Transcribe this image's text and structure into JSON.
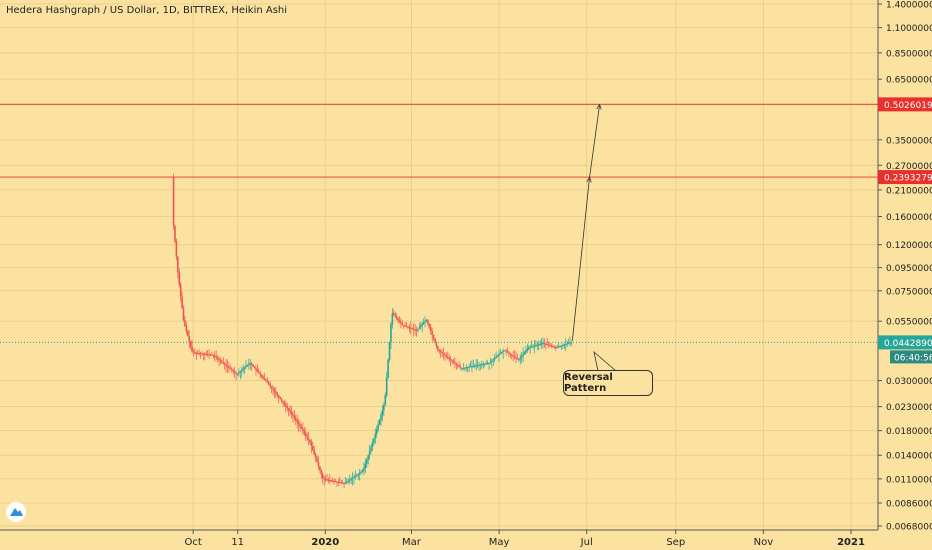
{
  "header": {
    "title": "Hedera Hashgraph / US Dollar, 1D, BITTREX, Heikin Ashi"
  },
  "annotation": {
    "text": "Reversal Pattern"
  },
  "colors": {
    "background": "#fbe2a0",
    "up": "#26a69a",
    "down": "#ef5350",
    "line": "#f25a3c",
    "price_tag": "#26a69a",
    "level_tag": "#e8302c"
  },
  "chart_data": {
    "type": "candlestick",
    "title": "Hedera Hashgraph / US Dollar, 1D, BITTREX, Heikin Ashi",
    "scale": "log",
    "ylim": [
      0.0068,
      1.4
    ],
    "y_ticks": [
      "1.40000000",
      "1.10000000",
      "0.85000000",
      "0.65000000",
      "0.50000000",
      "0.35000000",
      "0.27000000",
      "0.21000000",
      "0.16000000",
      "0.12000000",
      "0.09500000",
      "0.07500000",
      "0.05500000",
      "0.03000000",
      "0.02300000",
      "0.01800000",
      "0.01400000",
      "0.01100000",
      "0.00860000",
      "0.00680000"
    ],
    "x_ticks": [
      "Oct",
      "11",
      "2020",
      "Mar",
      "May",
      "Jul",
      "Sep",
      "Nov",
      "2021"
    ],
    "horizontal_levels": [
      {
        "label": "0.50260190",
        "value": 0.5026019
      },
      {
        "label": "0.23932798",
        "value": 0.23932798
      }
    ],
    "current_price": {
      "label": "0.04428900",
      "value": 0.044289,
      "countdown": "06:40:56"
    },
    "price_path": [
      [
        "2019-09-17",
        0.2393
      ],
      [
        "2019-09-18",
        0.145
      ],
      [
        "2019-09-21",
        0.09
      ],
      [
        "2019-09-25",
        0.055
      ],
      [
        "2019-10-01",
        0.04
      ],
      [
        "2019-10-15",
        0.039
      ],
      [
        "2019-11-01",
        0.032
      ],
      [
        "2019-11-10",
        0.036
      ],
      [
        "2019-11-25",
        0.028
      ],
      [
        "2019-12-10",
        0.021
      ],
      [
        "2019-12-22",
        0.016
      ],
      [
        "2019-12-31",
        0.011
      ],
      [
        "2020-01-15",
        0.0105
      ],
      [
        "2020-01-28",
        0.012
      ],
      [
        "2020-02-05",
        0.017
      ],
      [
        "2020-02-12",
        0.024
      ],
      [
        "2020-02-17",
        0.06
      ],
      [
        "2020-02-24",
        0.053
      ],
      [
        "2020-03-05",
        0.05
      ],
      [
        "2020-03-12",
        0.056
      ],
      [
        "2020-03-20",
        0.041
      ],
      [
        "2020-04-05",
        0.034
      ],
      [
        "2020-04-25",
        0.036
      ],
      [
        "2020-05-05",
        0.041
      ],
      [
        "2020-05-15",
        0.037
      ],
      [
        "2020-05-22",
        0.042
      ],
      [
        "2020-06-01",
        0.044
      ],
      [
        "2020-06-10",
        0.042
      ],
      [
        "2020-06-20",
        0.0443
      ]
    ],
    "arrows": [
      {
        "from": [
          "2020-06-21",
          0.045
        ],
        "to": [
          "2020-07-03",
          0.2393
        ]
      },
      {
        "from": [
          "2020-07-03",
          0.2393
        ],
        "to": [
          "2020-07-10",
          0.5026
        ]
      }
    ]
  }
}
